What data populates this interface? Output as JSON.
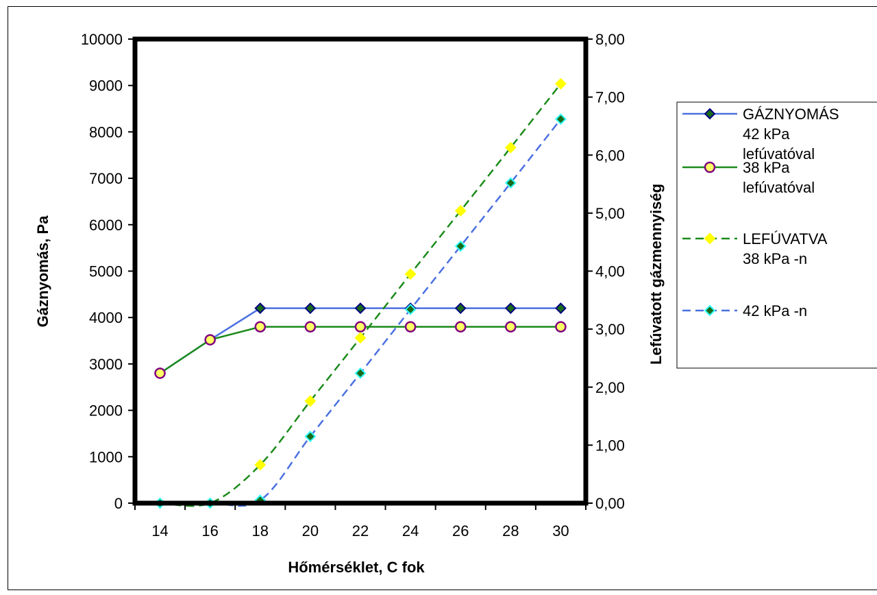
{
  "chart_data": {
    "type": "line",
    "x": [
      14,
      16,
      18,
      20,
      22,
      24,
      26,
      28,
      30
    ],
    "xlabel": "Hőmérséklet, C fok",
    "ylabel": "Gáznyomás, Pa",
    "y2label": "Lefúvatott gázmennyiség",
    "ylim": [
      0,
      10000
    ],
    "y2lim": [
      0,
      8
    ],
    "y_ticks": [
      "0",
      "1000",
      "2000",
      "3000",
      "4000",
      "5000",
      "6000",
      "7000",
      "8000",
      "9000",
      "10000"
    ],
    "y2_ticks": [
      "0,00",
      "1,00",
      "2,00",
      "3,00",
      "4,00",
      "5,00",
      "6,00",
      "7,00",
      "8,00"
    ],
    "x_ticks": [
      "14",
      "16",
      "18",
      "20",
      "22",
      "24",
      "26",
      "28",
      "30"
    ],
    "legend_position": "right",
    "series": [
      {
        "name": "GÁZNYOMÁS 42 kPa lefúvatóval",
        "legend_lines": [
          "GÁZNYOMÁS",
          "42 kPa",
          "lefúvatóval"
        ],
        "axis": "left",
        "values": [
          2800,
          3520,
          4200,
          4200,
          4200,
          4200,
          4200,
          4200,
          4200
        ],
        "line_color": "#4a70e0",
        "dash": "solid",
        "marker": "diamond",
        "marker_fill": "#1a6b1a",
        "marker_stroke": "#000080"
      },
      {
        "name": "38 kPa lefúvatóval",
        "legend_lines": [
          "38 kPa",
          "lefúvatóval"
        ],
        "axis": "left",
        "values": [
          2800,
          3520,
          3800,
          3800,
          3800,
          3800,
          3800,
          3800,
          3800
        ],
        "line_color": "#1a8a1a",
        "dash": "solid",
        "marker": "circle",
        "marker_fill": "#ffff66",
        "marker_stroke": "#800080"
      },
      {
        "name": "LEFÚVATVA 38 kPa -n",
        "legend_lines": [
          "LEFÚVATVA",
          "38 kPa -n"
        ],
        "axis": "right",
        "values": [
          0,
          0,
          0.66,
          1.76,
          2.85,
          3.95,
          5.04,
          6.13,
          7.23
        ],
        "line_color": "#1a8a1a",
        "dash": "dashed",
        "marker": "diamond",
        "marker_fill": "#ffff00",
        "marker_stroke": "#ffff00"
      },
      {
        "name": "42 kPa -n",
        "legend_lines": [
          "42 kPa -n"
        ],
        "axis": "right",
        "values": [
          0,
          0,
          0.05,
          1.15,
          2.24,
          3.34,
          4.43,
          5.52,
          6.62
        ],
        "line_color": "#4a70e0",
        "dash": "dashed",
        "marker": "diamond",
        "marker_fill": "#1a6b1a",
        "marker_stroke": "#33ffff"
      }
    ]
  }
}
